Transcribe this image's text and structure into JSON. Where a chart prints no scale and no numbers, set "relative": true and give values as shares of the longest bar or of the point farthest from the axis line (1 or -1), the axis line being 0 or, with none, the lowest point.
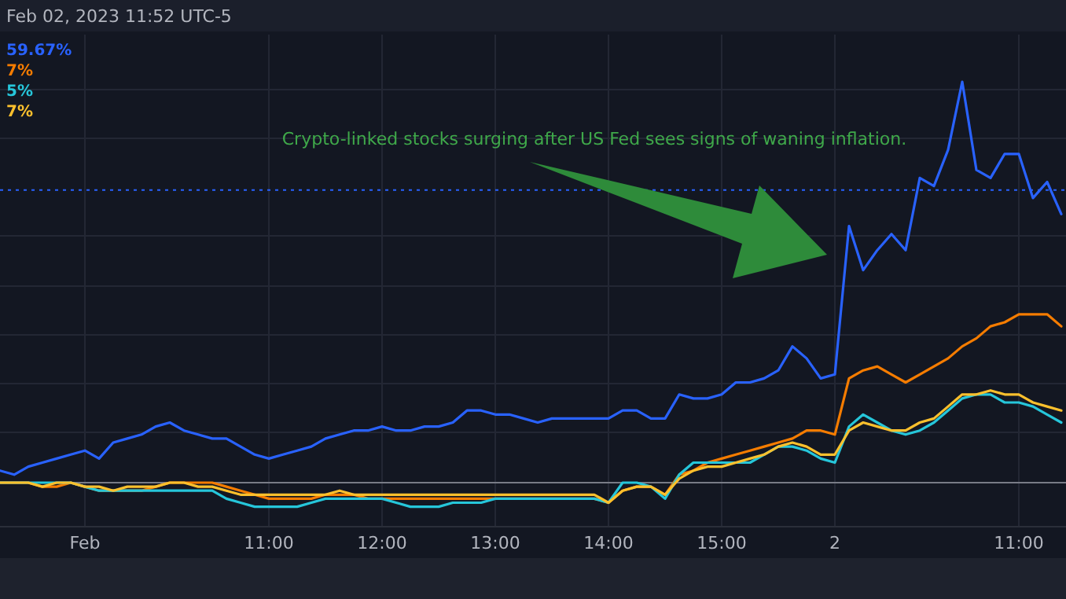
{
  "chart_data": {
    "type": "line",
    "relative": true,
    "grid": true,
    "line_style": "solid",
    "marker": "none",
    "annotations": [
      "Feb 02, 2023 11:52 UTC-5",
      "Crypto-linked stocks surging after US Fed sees signs of waning inflation.",
      "59.67%",
      "7%",
      "5%",
      "7%"
    ],
    "categories": [
      null,
      null,
      null,
      null,
      null,
      null,
      "Feb",
      null,
      null,
      null,
      null,
      null,
      null,
      null,
      null,
      null,
      null,
      null,
      null,
      "11:00",
      null,
      null,
      null,
      null,
      null,
      null,
      null,
      "12:00",
      null,
      null,
      null,
      null,
      null,
      null,
      null,
      "13:00",
      null,
      null,
      null,
      null,
      null,
      null,
      null,
      "14:00",
      null,
      null,
      null,
      null,
      null,
      null,
      null,
      "15:00",
      null,
      null,
      null,
      null,
      null,
      null,
      null,
      "2",
      null,
      null,
      null,
      null,
      null,
      null,
      null,
      null,
      null,
      null,
      null,
      null,
      "11:00",
      null,
      null,
      null
    ],
    "ref_lines": [
      {
        "axis": "y",
        "value": 0.73,
        "color": "#2962ff",
        "line_style": "dotted"
      }
    ],
    "series": [
      {
        "color": "#2962ff",
        "values": [
          0.03,
          0.02,
          0.04,
          0.05,
          0.06,
          0.07,
          0.08,
          0.06,
          0.1,
          0.11,
          0.12,
          0.14,
          0.15,
          0.13,
          0.12,
          0.11,
          0.11,
          0.09,
          0.07,
          0.06,
          0.07,
          0.08,
          0.09,
          0.11,
          0.12,
          0.13,
          0.13,
          0.14,
          0.13,
          0.13,
          0.14,
          0.14,
          0.15,
          0.18,
          0.18,
          0.17,
          0.17,
          0.16,
          0.15,
          0.16,
          0.16,
          0.16,
          0.16,
          0.16,
          0.18,
          0.18,
          0.16,
          0.16,
          0.22,
          0.21,
          0.21,
          0.22,
          0.25,
          0.25,
          0.26,
          0.28,
          0.34,
          0.31,
          0.26,
          0.27,
          0.64,
          0.53,
          0.58,
          0.62,
          0.58,
          0.76,
          0.74,
          0.83,
          1,
          0.78,
          0.76,
          0.82,
          0.82,
          0.71,
          0.75,
          0.67
        ]
      },
      {
        "color": "#f57c00",
        "values": [
          0,
          0,
          0,
          -0.01,
          -0.01,
          0,
          -0.01,
          -0.02,
          -0.02,
          -0.02,
          -0.02,
          -0.01,
          0,
          0,
          0,
          0,
          -0.01,
          -0.02,
          -0.03,
          -0.04,
          -0.04,
          -0.04,
          -0.04,
          -0.03,
          -0.03,
          -0.03,
          -0.04,
          -0.04,
          -0.04,
          -0.04,
          -0.04,
          -0.04,
          -0.04,
          -0.04,
          -0.04,
          -0.04,
          -0.04,
          -0.04,
          -0.04,
          -0.04,
          -0.04,
          -0.04,
          -0.04,
          -0.05,
          -0.02,
          -0.01,
          -0.01,
          -0.03,
          0.02,
          0.03,
          0.05,
          0.06,
          0.07,
          0.08,
          0.09,
          0.1,
          0.11,
          0.13,
          0.13,
          0.12,
          0.26,
          0.28,
          0.29,
          0.27,
          0.25,
          0.27,
          0.29,
          0.31,
          0.34,
          0.36,
          0.39,
          0.4,
          0.42,
          0.42,
          0.42,
          0.39
        ]
      },
      {
        "color": "#26c6da",
        "values": [
          0,
          0,
          0,
          0,
          0,
          0,
          -0.01,
          -0.02,
          -0.02,
          -0.02,
          -0.02,
          -0.02,
          -0.02,
          -0.02,
          -0.02,
          -0.02,
          -0.04,
          -0.05,
          -0.06,
          -0.06,
          -0.06,
          -0.06,
          -0.05,
          -0.04,
          -0.04,
          -0.04,
          -0.04,
          -0.04,
          -0.05,
          -0.06,
          -0.06,
          -0.06,
          -0.05,
          -0.05,
          -0.05,
          -0.04,
          -0.04,
          -0.04,
          -0.04,
          -0.04,
          -0.04,
          -0.04,
          -0.04,
          -0.05,
          0,
          0,
          -0.01,
          -0.04,
          0.02,
          0.05,
          0.05,
          0.05,
          0.05,
          0.05,
          0.07,
          0.09,
          0.09,
          0.08,
          0.06,
          0.05,
          0.14,
          0.17,
          0.15,
          0.13,
          0.12,
          0.13,
          0.15,
          0.18,
          0.21,
          0.22,
          0.22,
          0.2,
          0.2,
          0.19,
          0.17,
          0.15
        ]
      },
      {
        "color": "#fbc02d",
        "values": [
          0,
          0,
          0,
          -0.01,
          0,
          0,
          -0.01,
          -0.01,
          -0.02,
          -0.01,
          -0.01,
          -0.01,
          0,
          0,
          -0.01,
          -0.01,
          -0.02,
          -0.03,
          -0.03,
          -0.03,
          -0.03,
          -0.03,
          -0.03,
          -0.03,
          -0.02,
          -0.03,
          -0.03,
          -0.03,
          -0.03,
          -0.03,
          -0.03,
          -0.03,
          -0.03,
          -0.03,
          -0.03,
          -0.03,
          -0.03,
          -0.03,
          -0.03,
          -0.03,
          -0.03,
          -0.03,
          -0.03,
          -0.05,
          -0.02,
          -0.01,
          -0.01,
          -0.03,
          0.01,
          0.03,
          0.04,
          0.04,
          0.05,
          0.06,
          0.07,
          0.09,
          0.1,
          0.09,
          0.07,
          0.07,
          0.13,
          0.15,
          0.14,
          0.13,
          0.13,
          0.15,
          0.16,
          0.19,
          0.22,
          0.22,
          0.23,
          0.22,
          0.22,
          0.2,
          0.19,
          0.18
        ]
      }
    ]
  }
}
